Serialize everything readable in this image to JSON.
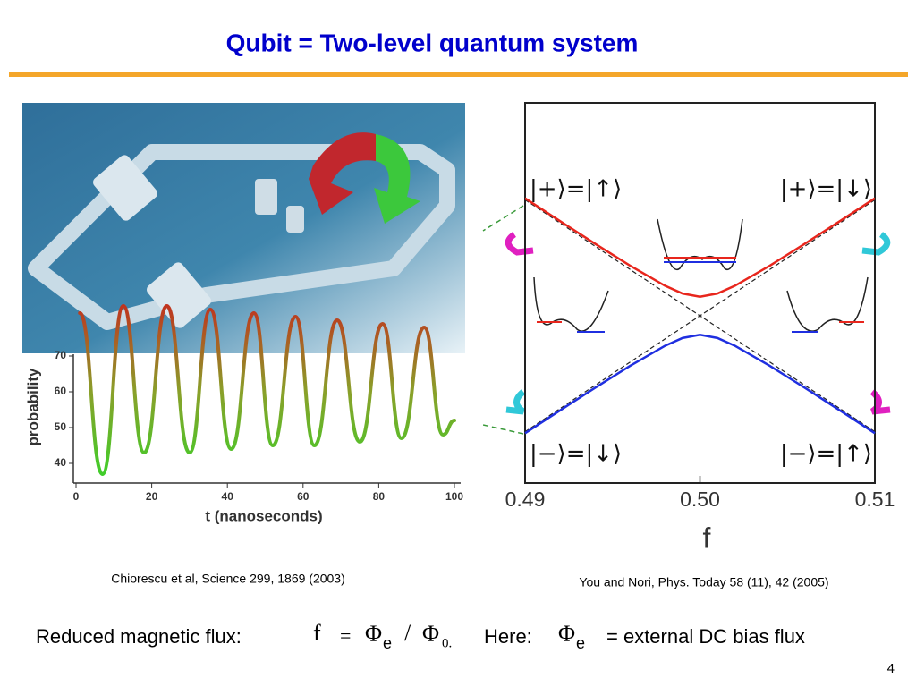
{
  "title": "Qubit  =  Two-level quantum system",
  "left_figure": {
    "type": "line",
    "caption": "Chiorescu et al, Science 299, 1869 (2003)",
    "x_label": "t (nanoseconds)",
    "y_label": "probability",
    "x": [
      1,
      7,
      12.5,
      18,
      24,
      30,
      35.5,
      41,
      47,
      52,
      58,
      63,
      69,
      75,
      81,
      86,
      92,
      97,
      100
    ],
    "values": [
      82,
      37,
      84,
      43,
      84,
      43,
      83,
      44,
      82,
      45,
      81,
      45,
      80,
      46,
      79,
      47,
      78,
      48,
      52
    ],
    "xlim": [
      0,
      100
    ],
    "ylim": [
      35,
      85
    ],
    "xticks": [
      0,
      20,
      40,
      60,
      80,
      100
    ],
    "yticks": [
      40,
      50,
      60,
      70
    ]
  },
  "right_figure": {
    "type": "line",
    "caption": "You and Nori,  Phys. Today 58 (11), 42 (2005)",
    "x_label": "f",
    "xlim": [
      0.49,
      0.51
    ],
    "ylim": [
      -1,
      1
    ],
    "xticks": [
      0.49,
      {
        "value": 0.5,
        "label": "0.50"
      },
      0.51
    ],
    "x": [
      0.49,
      0.492,
      0.494,
      0.496,
      0.498,
      0.499,
      0.5,
      0.501,
      0.502,
      0.504,
      0.506,
      0.508,
      0.51
    ],
    "series": [
      {
        "color": "#e8261d",
        "values": [
          0.498,
          0.378,
          0.259,
          0.144,
          0.038,
          -0.003,
          -0.02,
          -0.003,
          0.038,
          0.144,
          0.259,
          0.378,
          0.498
        ]
      },
      {
        "color": "#1f2fe0",
        "values": [
          -0.738,
          -0.618,
          -0.499,
          -0.384,
          -0.278,
          -0.237,
          -0.22,
          -0.237,
          -0.278,
          -0.384,
          -0.499,
          -0.618,
          -0.738
        ]
      }
    ],
    "asymptote_x": [
      0.49,
      0.51
    ],
    "asymptotes": [
      {
        "values": [
          0.49,
          -0.73
        ]
      },
      {
        "values": [
          -0.73,
          0.49
        ]
      }
    ],
    "state_labels": [
      "|+⟩=|↑⟩",
      "|+⟩=|↓⟩",
      "|−⟩=|↓⟩",
      "|−⟩=|↑⟩"
    ]
  },
  "footer": {
    "label": "Reduced magnetic flux:",
    "f": "f",
    "equals": "=",
    "phi": "Φ",
    "sub_e": "e",
    "slash": "/",
    "sub_0": "0.",
    "here": "Here:",
    "definition": "= external DC bias flux"
  },
  "page_number": "4"
}
